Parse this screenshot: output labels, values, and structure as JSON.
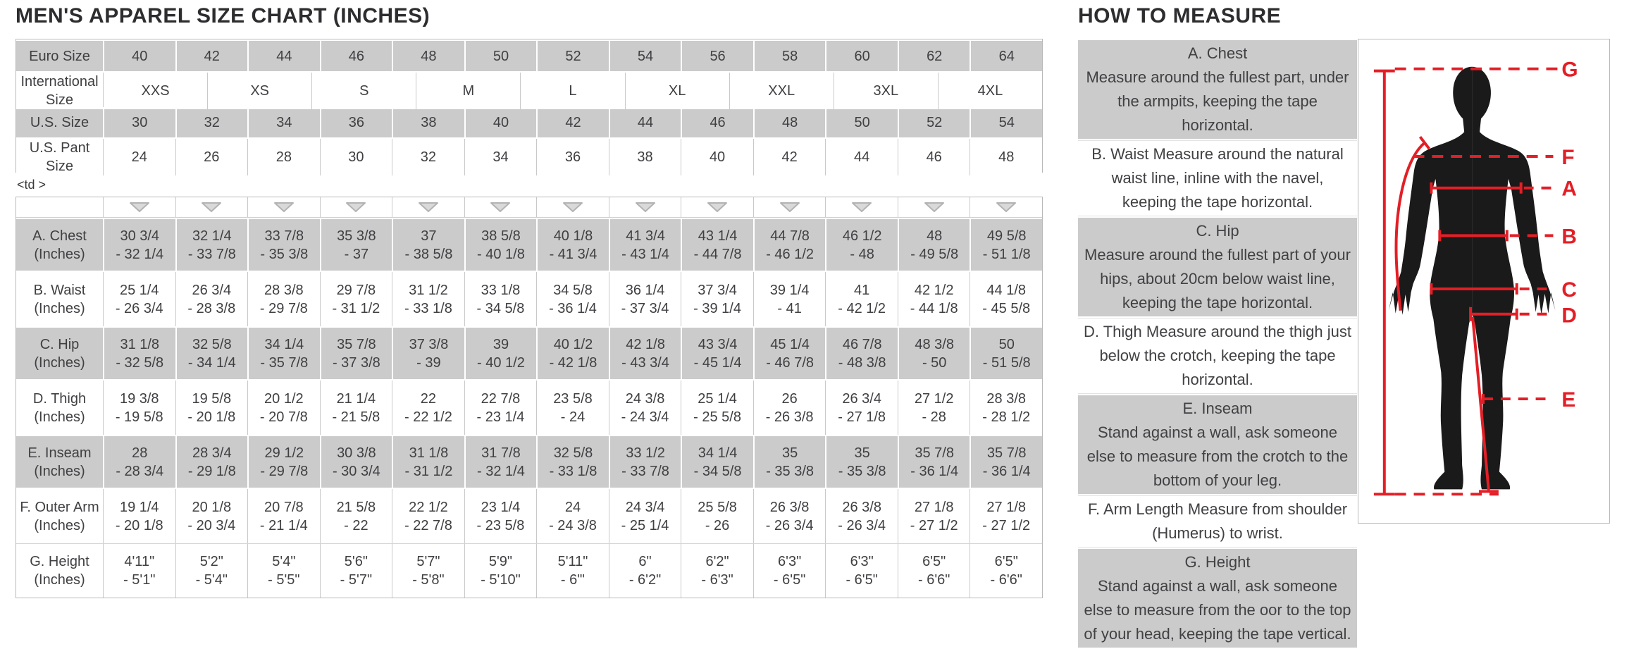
{
  "size_chart": {
    "title": "MEN'S APPAREL SIZE CHART (INCHES)",
    "td_note": "<td >",
    "top_rows": [
      {
        "label": "Euro Size",
        "shaded": true,
        "values": [
          "40",
          "42",
          "44",
          "46",
          "48",
          "50",
          "52",
          "54",
          "56",
          "58",
          "60",
          "62",
          "64"
        ]
      },
      {
        "label": "International Size",
        "shaded": false,
        "values": [
          "XXS",
          "XS",
          "S",
          "M",
          "L",
          "XL",
          "XXL",
          "3XL",
          "4XL"
        ]
      },
      {
        "label": "U.S. Size",
        "shaded": true,
        "values": [
          "30",
          "32",
          "34",
          "36",
          "38",
          "40",
          "42",
          "44",
          "46",
          "48",
          "50",
          "52",
          "54"
        ]
      },
      {
        "label": "U.S. Pant Size",
        "shaded": false,
        "values": [
          "24",
          "26",
          "28",
          "30",
          "32",
          "34",
          "36",
          "38",
          "40",
          "42",
          "44",
          "46",
          "48"
        ]
      }
    ],
    "measure_rows": [
      {
        "label": "A. Chest (Inches)",
        "shaded": true,
        "values": [
          [
            "30 3/4",
            "- 32 1/4"
          ],
          [
            "32 1/4",
            "- 33 7/8"
          ],
          [
            "33 7/8",
            "- 35 3/8"
          ],
          [
            "35 3/8",
            "- 37"
          ],
          [
            "37",
            "- 38 5/8"
          ],
          [
            "38 5/8",
            "- 40 1/8"
          ],
          [
            "40 1/8",
            "- 41 3/4"
          ],
          [
            "41 3/4",
            "- 43 1/4"
          ],
          [
            "43 1/4",
            "- 44 7/8"
          ],
          [
            "44 7/8",
            "- 46 1/2"
          ],
          [
            "46 1/2",
            "- 48"
          ],
          [
            "48",
            "- 49 5/8"
          ],
          [
            "49 5/8",
            "- 51 1/8"
          ]
        ]
      },
      {
        "label": "B. Waist (Inches)",
        "shaded": false,
        "values": [
          [
            "25 1/4",
            "- 26 3/4"
          ],
          [
            "26 3/4",
            "- 28 3/8"
          ],
          [
            "28 3/8",
            "- 29 7/8"
          ],
          [
            "29 7/8",
            "- 31 1/2"
          ],
          [
            "31 1/2",
            "- 33 1/8"
          ],
          [
            "33 1/8",
            "- 34 5/8"
          ],
          [
            "34 5/8",
            "- 36 1/4"
          ],
          [
            "36 1/4",
            "- 37 3/4"
          ],
          [
            "37 3/4",
            "- 39 1/4"
          ],
          [
            "39 1/4",
            "- 41"
          ],
          [
            "41",
            "- 42 1/2"
          ],
          [
            "42 1/2",
            "- 44 1/8"
          ],
          [
            "44 1/8",
            "- 45 5/8"
          ]
        ]
      },
      {
        "label": "C. Hip (Inches)",
        "shaded": true,
        "values": [
          [
            "31 1/8",
            "- 32 5/8"
          ],
          [
            "32 5/8",
            "- 34 1/4"
          ],
          [
            "34 1/4",
            "- 35 7/8"
          ],
          [
            "35 7/8",
            "- 37 3/8"
          ],
          [
            "37 3/8",
            "- 39"
          ],
          [
            "39",
            "- 40 1/2"
          ],
          [
            "40 1/2",
            "- 42 1/8"
          ],
          [
            "42 1/8",
            "- 43 3/4"
          ],
          [
            "43 3/4",
            "- 45 1/4"
          ],
          [
            "45 1/4",
            "- 46 7/8"
          ],
          [
            "46 7/8",
            "- 48 3/8"
          ],
          [
            "48 3/8",
            "- 50"
          ],
          [
            "50",
            "- 51 5/8"
          ]
        ]
      },
      {
        "label": "D. Thigh (Inches)",
        "shaded": false,
        "values": [
          [
            "19 3/8",
            "- 19 5/8"
          ],
          [
            "19 5/8",
            "- 20 1/8"
          ],
          [
            "20 1/2",
            "- 20 7/8"
          ],
          [
            "21 1/4",
            "- 21 5/8"
          ],
          [
            "22",
            "- 22 1/2"
          ],
          [
            "22 7/8",
            "- 23 1/4"
          ],
          [
            "23 5/8",
            "- 24"
          ],
          [
            "24 3/8",
            "- 24 3/4"
          ],
          [
            "25 1/4",
            "- 25 5/8"
          ],
          [
            "26",
            "- 26 3/8"
          ],
          [
            "26 3/4",
            "- 27 1/8"
          ],
          [
            "27 1/2",
            "- 28"
          ],
          [
            "28 3/8",
            "- 28 1/2"
          ]
        ]
      },
      {
        "label": "E. Inseam (Inches)",
        "shaded": true,
        "values": [
          [
            "28",
            "- 28 3/4"
          ],
          [
            "28 3/4",
            "- 29 1/8"
          ],
          [
            "29 1/2",
            "- 29 7/8"
          ],
          [
            "30 3/8",
            "- 30 3/4"
          ],
          [
            "31 1/8",
            "- 31 1/2"
          ],
          [
            "31 7/8",
            "- 32 1/4"
          ],
          [
            "32 5/8",
            "- 33 1/8"
          ],
          [
            "33 1/2",
            "- 33 7/8"
          ],
          [
            "34 1/4",
            "- 34 5/8"
          ],
          [
            "35",
            "- 35 3/8"
          ],
          [
            "35",
            "- 35 3/8"
          ],
          [
            "35 7/8",
            "- 36 1/4"
          ],
          [
            "35 7/8",
            "- 36 1/4"
          ]
        ]
      },
      {
        "label": "F. Outer Arm (Inches)",
        "shaded": false,
        "values": [
          [
            "19 1/4",
            "- 20 1/8"
          ],
          [
            "20 1/8",
            "- 20 3/4"
          ],
          [
            "20 7/8",
            "- 21 1/4"
          ],
          [
            "21 5/8",
            "- 22"
          ],
          [
            "22 1/2",
            "- 22 7/8"
          ],
          [
            "23 1/4",
            "- 23 5/8"
          ],
          [
            "24",
            "- 24 3/8"
          ],
          [
            "24 3/4",
            "- 25 1/4"
          ],
          [
            "25 5/8",
            "- 26"
          ],
          [
            "26 3/8",
            "- 26 3/4"
          ],
          [
            "26 3/8",
            "- 26 3/4"
          ],
          [
            "27 1/8",
            "- 27 1/2"
          ],
          [
            "27 1/8",
            "- 27 1/2"
          ]
        ]
      },
      {
        "label": "G. Height (Inches)",
        "shaded": false,
        "values": [
          [
            "4'11\"",
            "- 5'1\""
          ],
          [
            "5'2\"",
            "- 5'4\""
          ],
          [
            "5'4\"",
            "- 5'5\""
          ],
          [
            "5'6\"",
            "- 5'7\""
          ],
          [
            "5'7\"",
            "- 5'8\""
          ],
          [
            "5'9\"",
            "- 5'10\""
          ],
          [
            "5'11\"",
            "- 6\"'"
          ],
          [
            "6\"",
            "- 6'2\""
          ],
          [
            "6'2\"",
            "- 6'3\""
          ],
          [
            "6'3\"",
            "- 6'5\""
          ],
          [
            "6'3\"",
            "- 6'5\""
          ],
          [
            "6'5\"",
            "- 6'6\""
          ],
          [
            "6'5\"",
            "- 6'6\""
          ]
        ]
      }
    ]
  },
  "how_to_measure": {
    "title": "HOW TO MEASURE",
    "items": [
      {
        "heading": "A. Chest",
        "shaded": true,
        "text": "Measure around the fullest part, under the armpits, keeping the tape horizontal."
      },
      {
        "heading": "",
        "shaded": false,
        "text": "B. Waist Measure around the natural waist line, inline with the navel, keeping the tape horizontal."
      },
      {
        "heading": "C. Hip",
        "shaded": true,
        "text": "Measure around the fullest part of your hips, about 20cm below waist line, keeping the tape horizontal."
      },
      {
        "heading": "",
        "shaded": false,
        "text": "D. Thigh Measure around the thigh just below the crotch, keeping the tape horizontal."
      },
      {
        "heading": "E. Inseam",
        "shaded": true,
        "text": "Stand against a wall, ask someone else to measure from the crotch to the bottom of your leg."
      },
      {
        "heading": "",
        "shaded": false,
        "text": "F. Arm Length Measure from shoulder (Humerus) to wrist."
      },
      {
        "heading": "G. Height",
        "shaded": true,
        "text": "Stand against a wall, ask someone else to measure from the oor to the top of your head, keeping the tape vertical."
      }
    ],
    "diagram_labels": [
      "G",
      "F",
      "A",
      "B",
      "C",
      "D",
      "E"
    ],
    "accent_color": "#e41e26"
  },
  "colors": {
    "shaded_row": "#cbcbcb",
    "border": "#b9b9b9",
    "text": "#404043",
    "diagram_red": "#e41e26"
  }
}
